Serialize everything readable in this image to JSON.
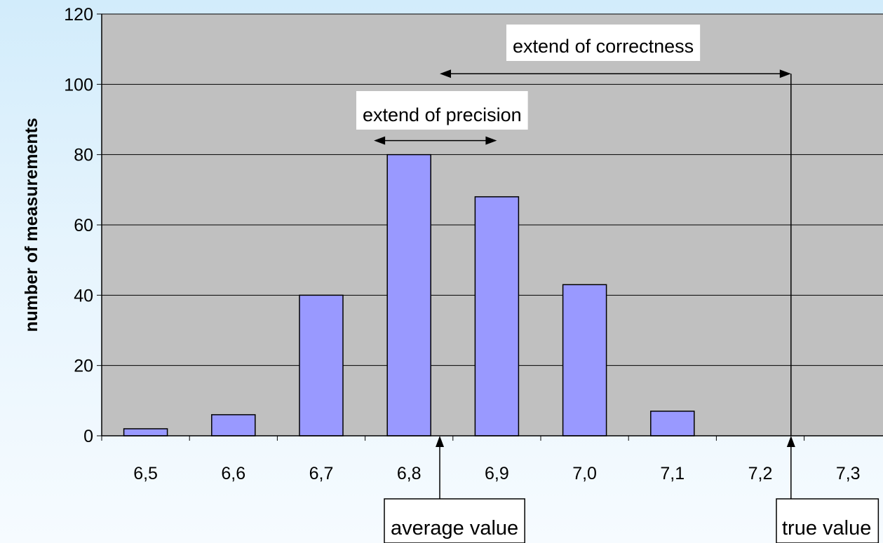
{
  "chart_data": {
    "type": "bar",
    "categories": [
      "6,5",
      "6,6",
      "6,7",
      "6,8",
      "6,9",
      "7,0",
      "7,1",
      "7,2",
      "7,3"
    ],
    "values": [
      2,
      6,
      40,
      80,
      68,
      43,
      7,
      0,
      0
    ],
    "title": "",
    "xlabel": "",
    "ylabel": "number of measurements",
    "ylim": [
      0,
      120
    ],
    "yticks": [
      "0",
      "20",
      "40",
      "60",
      "80",
      "100",
      "120"
    ],
    "grid": true,
    "legend": "none",
    "colors": {
      "bar": "#9999ff",
      "plot_background": "#c0c0c0",
      "page_background": "#dff1fc",
      "annotation_box": "#ffffff"
    },
    "annotations": {
      "precision_label": "extend of precision",
      "correctness_label": "extend of correctness",
      "average_label": "average value",
      "true_label": "true value",
      "average_value": 6.835,
      "true_value": 7.235,
      "precision_range": [
        6.76,
        6.9
      ],
      "correctness_range": [
        6.835,
        7.235
      ],
      "precision_arrow_level": 84,
      "correctness_arrow_level": 103
    }
  }
}
